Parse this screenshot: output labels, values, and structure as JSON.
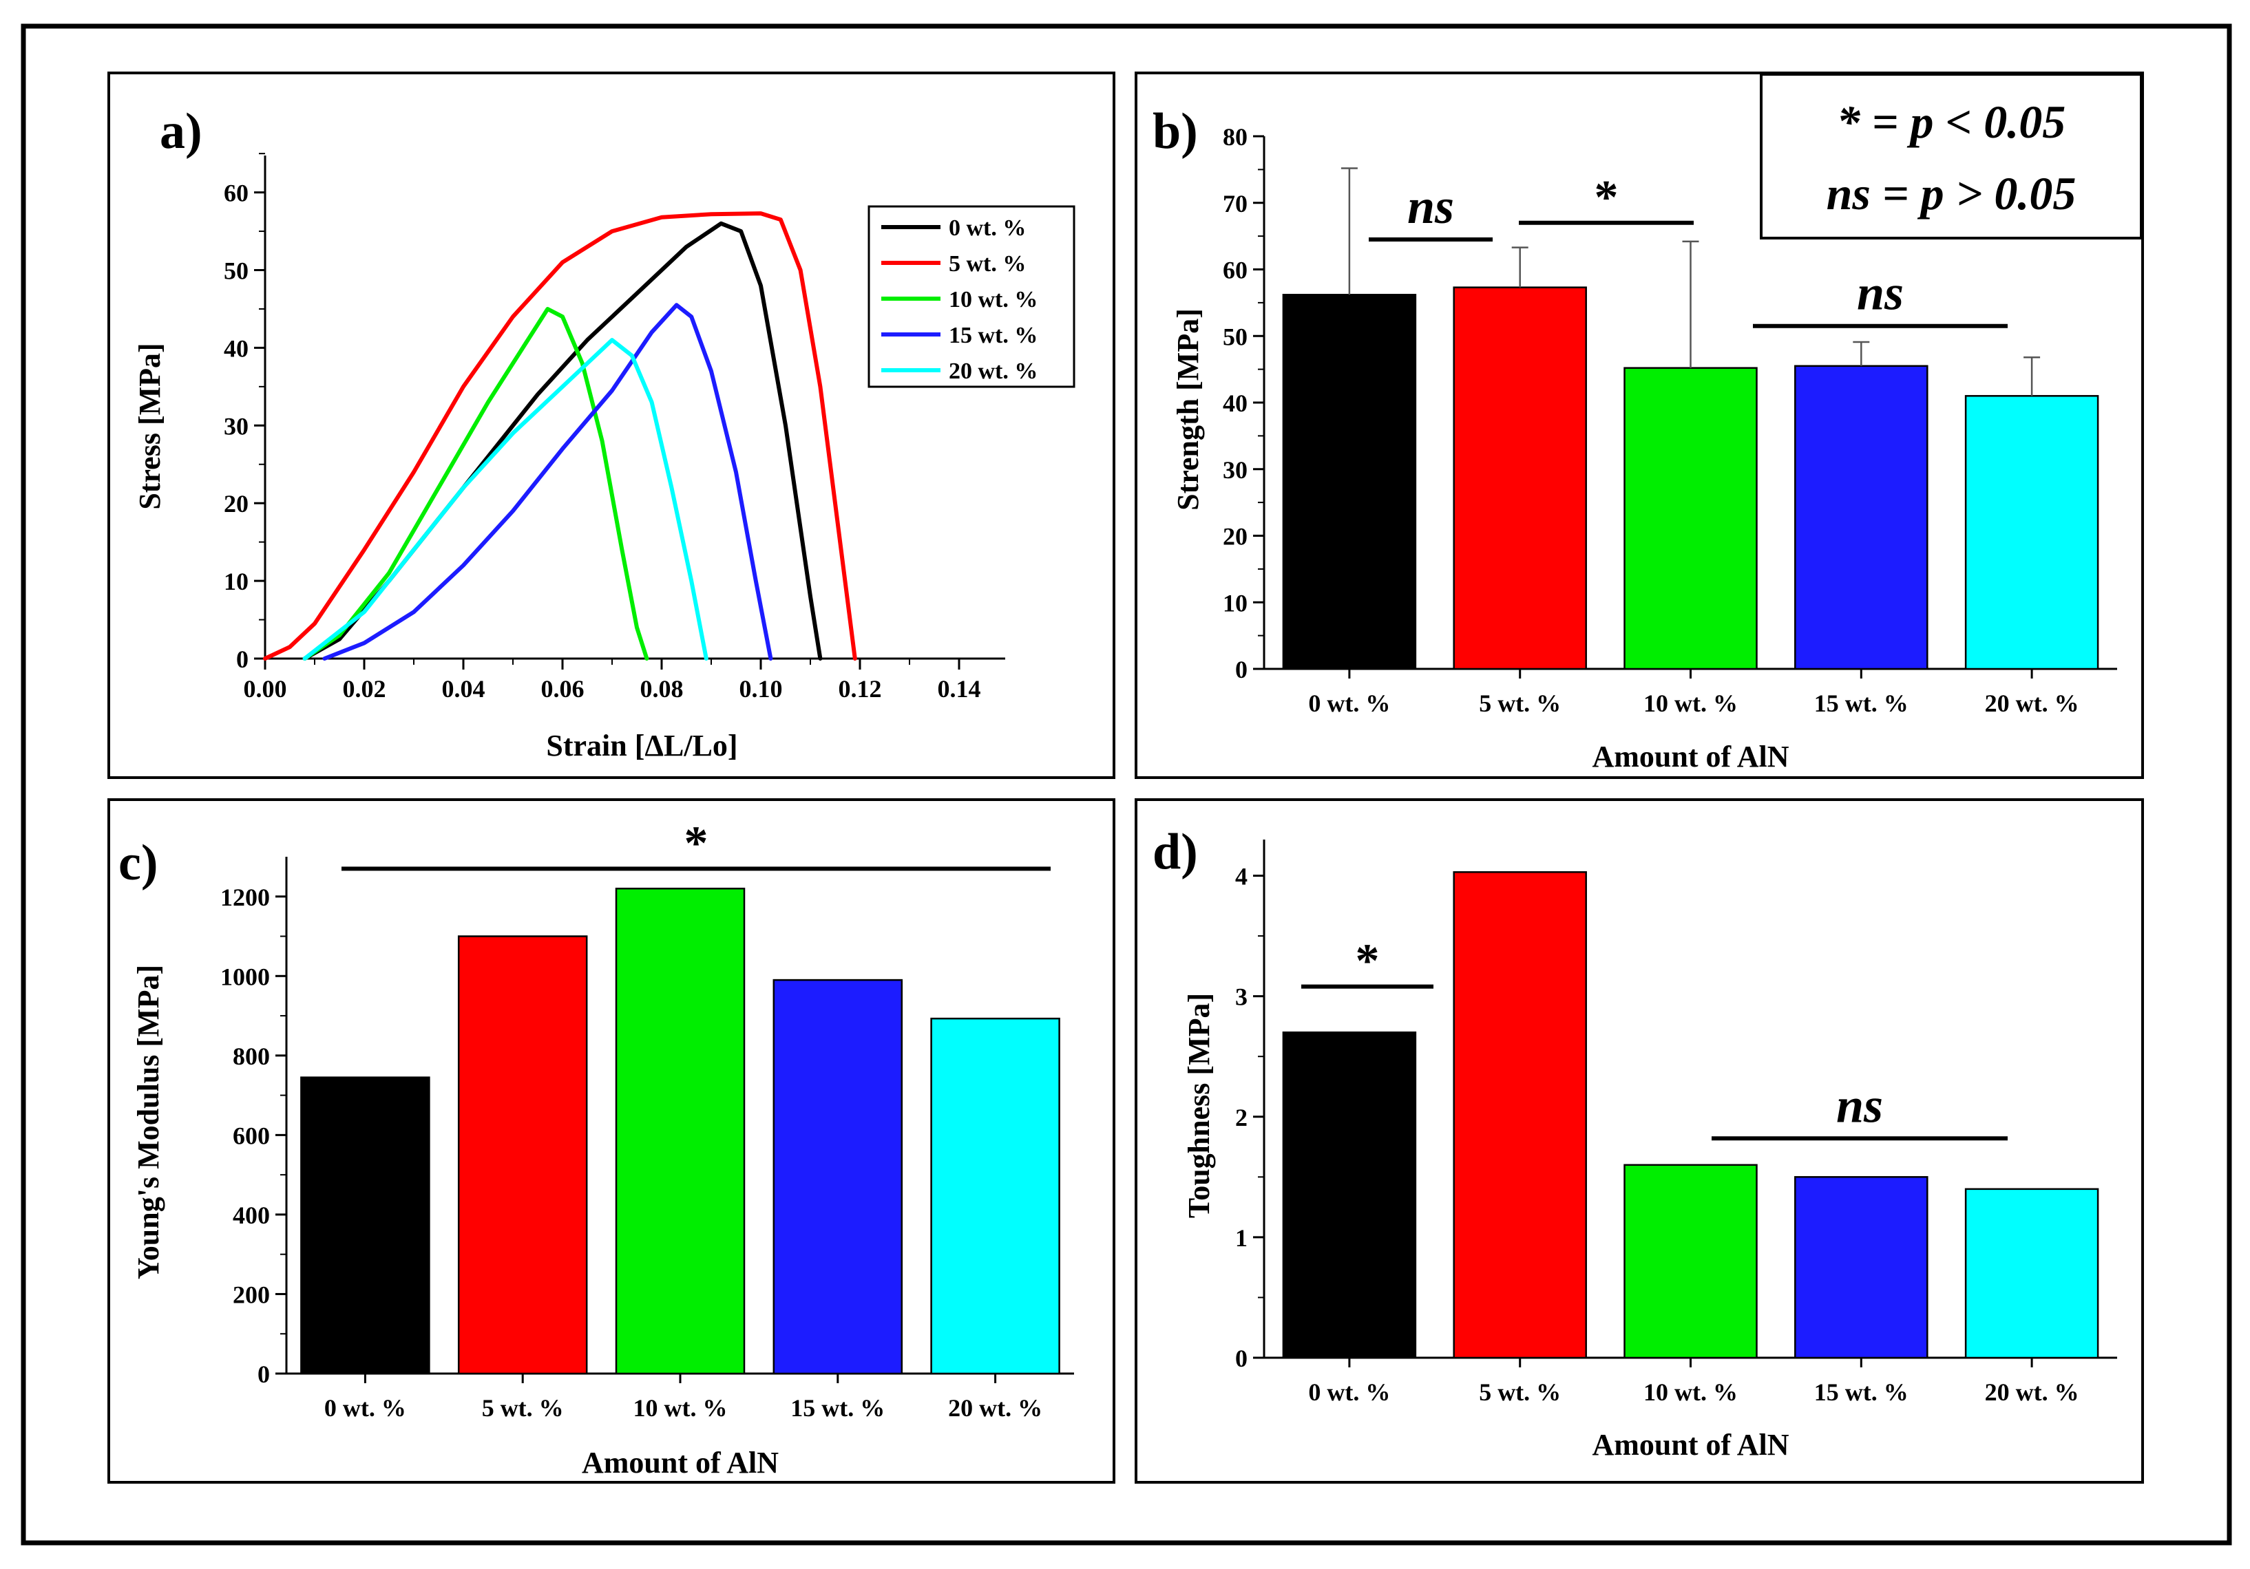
{
  "chart_data": [
    {
      "panel": "a",
      "panel_label": "a)",
      "type": "line",
      "xlabel": "Strain [ΔL/Lo]",
      "ylabel": "Stress [MPa]",
      "xlim": [
        0,
        0.15
      ],
      "ylim": [
        0,
        65
      ],
      "xticks": [
        "0.00",
        "0.02",
        "0.04",
        "0.06",
        "0.08",
        "0.10",
        "0.12",
        "0.14"
      ],
      "yticks": [
        "0",
        "10",
        "20",
        "30",
        "40",
        "50",
        "60"
      ],
      "legend": "top-right",
      "series": [
        {
          "name": "0 wt. %",
          "color": "#000000",
          "points": [
            [
              0.008,
              0
            ],
            [
              0.015,
              2.5
            ],
            [
              0.025,
              10
            ],
            [
              0.035,
              18
            ],
            [
              0.045,
              26
            ],
            [
              0.055,
              34
            ],
            [
              0.065,
              41
            ],
            [
              0.075,
              47
            ],
            [
              0.085,
              53
            ],
            [
              0.092,
              56
            ],
            [
              0.096,
              55
            ],
            [
              0.1,
              48
            ],
            [
              0.105,
              30
            ],
            [
              0.11,
              8
            ],
            [
              0.112,
              0
            ]
          ]
        },
        {
          "name": "5 wt. %",
          "color": "#ff0000",
          "points": [
            [
              0,
              0
            ],
            [
              0.005,
              1.5
            ],
            [
              0.01,
              4.5
            ],
            [
              0.02,
              14
            ],
            [
              0.03,
              24
            ],
            [
              0.04,
              35
            ],
            [
              0.05,
              44
            ],
            [
              0.06,
              51
            ],
            [
              0.07,
              55
            ],
            [
              0.08,
              56.8
            ],
            [
              0.09,
              57.2
            ],
            [
              0.1,
              57.3
            ],
            [
              0.104,
              56.5
            ],
            [
              0.108,
              50
            ],
            [
              0.112,
              35
            ],
            [
              0.116,
              15
            ],
            [
              0.119,
              0
            ]
          ]
        },
        {
          "name": "10 wt. %",
          "color": "#00ee00",
          "points": [
            [
              0.008,
              0
            ],
            [
              0.015,
              3
            ],
            [
              0.025,
              11
            ],
            [
              0.035,
              22
            ],
            [
              0.045,
              33
            ],
            [
              0.052,
              40
            ],
            [
              0.057,
              45
            ],
            [
              0.06,
              44
            ],
            [
              0.064,
              38
            ],
            [
              0.068,
              28
            ],
            [
              0.072,
              14
            ],
            [
              0.075,
              4
            ],
            [
              0.077,
              0
            ]
          ]
        },
        {
          "name": "15 wt. %",
          "color": "#1c1cff",
          "points": [
            [
              0.012,
              0
            ],
            [
              0.02,
              2
            ],
            [
              0.03,
              6
            ],
            [
              0.04,
              12
            ],
            [
              0.05,
              19
            ],
            [
              0.06,
              27
            ],
            [
              0.07,
              34.5
            ],
            [
              0.078,
              42
            ],
            [
              0.083,
              45.5
            ],
            [
              0.086,
              44
            ],
            [
              0.09,
              37
            ],
            [
              0.095,
              24
            ],
            [
              0.099,
              10
            ],
            [
              0.102,
              0
            ]
          ]
        },
        {
          "name": "20 wt. %",
          "color": "#00ffff",
          "points": [
            [
              0.008,
              0
            ],
            [
              0.02,
              6
            ],
            [
              0.03,
              14
            ],
            [
              0.04,
              22
            ],
            [
              0.05,
              29
            ],
            [
              0.06,
              35
            ],
            [
              0.065,
              38
            ],
            [
              0.07,
              41
            ],
            [
              0.074,
              39
            ],
            [
              0.078,
              33
            ],
            [
              0.082,
              22
            ],
            [
              0.086,
              10
            ],
            [
              0.089,
              0
            ]
          ]
        }
      ]
    },
    {
      "panel": "b",
      "panel_label": "b)",
      "type": "bar",
      "categories": [
        "0 wt. %",
        "5 wt. %",
        "10 wt. %",
        "15 wt. %",
        "20 wt. %"
      ],
      "values": [
        56.2,
        57.3,
        45.2,
        45.5,
        41
      ],
      "error": [
        19,
        6,
        19,
        3.6,
        5.8
      ],
      "colors": [
        "#000000",
        "#ff0000",
        "#00ee00",
        "#1c1cff",
        "#00ffff"
      ],
      "xlabel": "Amount of AlN",
      "ylabel": "Strength [MPa]",
      "ylim": [
        0,
        80
      ],
      "yticks": [
        "0",
        "10",
        "20",
        "30",
        "40",
        "50",
        "60",
        "70",
        "80"
      ],
      "annotations": [
        {
          "text": "ns",
          "from": 0,
          "to": 1,
          "level": 64.5,
          "italic": true
        },
        {
          "text": "*",
          "from": 1,
          "to": 2,
          "level": 67,
          "italic": false
        },
        {
          "text": "ns",
          "from": 3,
          "to": 4,
          "level": 51.5,
          "italic": true
        }
      ],
      "key_box": {
        "line1": "* = p < 0.05",
        "line2": "ns = p > 0.05"
      }
    },
    {
      "panel": "c",
      "panel_label": "c)",
      "type": "bar",
      "categories": [
        "0 wt. %",
        "5 wt. %",
        "10 wt. %",
        "15 wt. %",
        "20 wt. %"
      ],
      "values": [
        745,
        1100,
        1220,
        990,
        893
      ],
      "colors": [
        "#000000",
        "#ff0000",
        "#00ee00",
        "#1c1cff",
        "#00ffff"
      ],
      "xlabel": "Amount of AlN",
      "ylabel": "Young's Modulus [MPa]",
      "ylim": [
        0,
        1300
      ],
      "yticks": [
        "0",
        "200",
        "400",
        "600",
        "800",
        "1000",
        "1200"
      ],
      "annotations": [
        {
          "text": "*",
          "from": 0,
          "to": 4,
          "level": 1270,
          "italic": false
        }
      ]
    },
    {
      "panel": "d",
      "panel_label": "d)",
      "type": "bar",
      "categories": [
        "0 wt. %",
        "5 wt. %",
        "10 wt. %",
        "15 wt. %",
        "20 wt. %"
      ],
      "values": [
        2.7,
        4.03,
        1.6,
        1.5,
        1.4
      ],
      "colors": [
        "#000000",
        "#ff0000",
        "#00ee00",
        "#1c1cff",
        "#00ffff"
      ],
      "xlabel": "Amount of AlN",
      "ylabel": "Toughness [MPa]",
      "ylim": [
        0,
        4.3
      ],
      "yticks": [
        "0",
        "1",
        "2",
        "3",
        "4"
      ],
      "annotations": [
        {
          "text": "*",
          "from": 0,
          "to": 0,
          "level": 3.08,
          "italic": false
        },
        {
          "text": "ns",
          "from": 2,
          "to": 4,
          "level": 1.82,
          "italic": true
        }
      ]
    }
  ]
}
